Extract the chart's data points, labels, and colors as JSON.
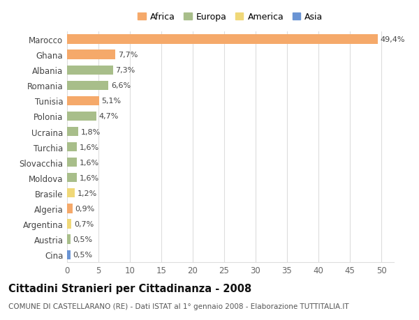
{
  "countries": [
    "Marocco",
    "Ghana",
    "Albania",
    "Romania",
    "Tunisia",
    "Polonia",
    "Ucraina",
    "Turchia",
    "Slovacchia",
    "Moldova",
    "Brasile",
    "Algeria",
    "Argentina",
    "Austria",
    "Cina"
  ],
  "values": [
    49.4,
    7.7,
    7.3,
    6.6,
    5.1,
    4.7,
    1.8,
    1.6,
    1.6,
    1.6,
    1.2,
    0.9,
    0.7,
    0.5,
    0.5
  ],
  "labels": [
    "49,4%",
    "7,7%",
    "7,3%",
    "6,6%",
    "5,1%",
    "4,7%",
    "1,8%",
    "1,6%",
    "1,6%",
    "1,6%",
    "1,2%",
    "0,9%",
    "0,7%",
    "0,5%",
    "0,5%"
  ],
  "continents": [
    "Africa",
    "Africa",
    "Europa",
    "Europa",
    "Africa",
    "Europa",
    "Europa",
    "Europa",
    "Europa",
    "Europa",
    "America",
    "Africa",
    "America",
    "Europa",
    "Asia"
  ],
  "colors": {
    "Africa": "#F5A96A",
    "Europa": "#A8BE8A",
    "America": "#F0D878",
    "Asia": "#6A94D4"
  },
  "xlim": [
    0,
    52
  ],
  "xticks": [
    0,
    5,
    10,
    15,
    20,
    25,
    30,
    35,
    40,
    45,
    50
  ],
  "title": "Cittadini Stranieri per Cittadinanza - 2008",
  "subtitle": "COMUNE DI CASTELLARANO (RE) - Dati ISTAT al 1° gennaio 2008 - Elaborazione TUTTITALIA.IT",
  "bg_color": "#FFFFFF",
  "grid_color": "#DDDDDD",
  "bar_height": 0.6,
  "label_fontsize": 8.0,
  "tick_fontsize": 8.5,
  "title_fontsize": 10.5,
  "subtitle_fontsize": 7.5
}
